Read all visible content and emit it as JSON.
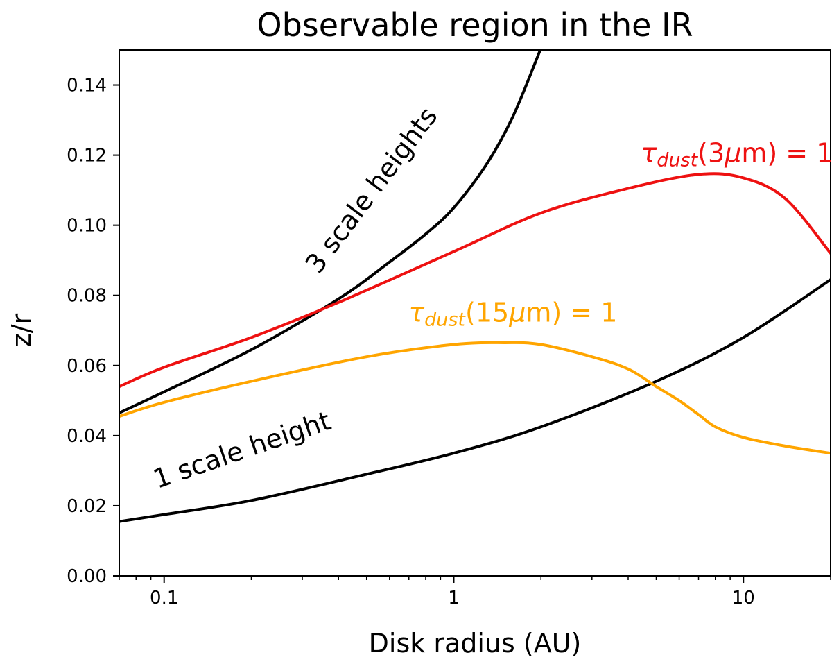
{
  "chart_data": {
    "type": "line",
    "title": "Observable region in the IR",
    "xlabel": "Disk radius (AU)",
    "ylabel": "z/r",
    "xscale": "log",
    "xlim": [
      0.07,
      20
    ],
    "ylim": [
      0,
      0.15
    ],
    "grid": false,
    "xticks": [
      {
        "value": 0.1,
        "label": "0.1"
      },
      {
        "value": 1,
        "label": "1"
      },
      {
        "value": 10,
        "label": "10"
      }
    ],
    "yticks": [
      {
        "value": 0.0,
        "label": "0.00"
      },
      {
        "value": 0.02,
        "label": "0.02"
      },
      {
        "value": 0.04,
        "label": "0.04"
      },
      {
        "value": 0.06,
        "label": "0.06"
      },
      {
        "value": 0.08,
        "label": "0.08"
      },
      {
        "value": 0.1,
        "label": "0.10"
      },
      {
        "value": 0.12,
        "label": "0.12"
      },
      {
        "value": 0.14,
        "label": "0.14"
      }
    ],
    "series": [
      {
        "name": "1 scale height",
        "color": "#000000",
        "x": [
          0.07,
          0.1,
          0.2,
          0.5,
          1,
          2,
          5,
          10,
          20
        ],
        "y": [
          0.0155,
          0.0175,
          0.0215,
          0.029,
          0.035,
          0.0425,
          0.0555,
          0.068,
          0.0845
        ]
      },
      {
        "name": "3 scale heights",
        "color": "#000000",
        "x": [
          0.07,
          0.1,
          0.2,
          0.4,
          0.6,
          0.8,
          1,
          1.3,
          1.6,
          2.0
        ],
        "y": [
          0.0465,
          0.0525,
          0.0645,
          0.079,
          0.0895,
          0.0975,
          0.105,
          0.1175,
          0.131,
          0.1505
        ]
      },
      {
        "name": "tau_dust(3um) = 1",
        "color": "#ee1111",
        "x": [
          0.07,
          0.1,
          0.2,
          0.4,
          1,
          2,
          4,
          7,
          10,
          14,
          20
        ],
        "y": [
          0.054,
          0.0595,
          0.068,
          0.078,
          0.0925,
          0.1035,
          0.1105,
          0.1145,
          0.1135,
          0.1075,
          0.092
        ]
      },
      {
        "name": "tau_dust(15um) = 1",
        "color": "#ffa500",
        "x": [
          0.07,
          0.1,
          0.2,
          0.5,
          1,
          1.5,
          2,
          3,
          4,
          5,
          6,
          7,
          8,
          10,
          14,
          20
        ],
        "y": [
          0.0455,
          0.0495,
          0.0555,
          0.0625,
          0.066,
          0.0665,
          0.066,
          0.0625,
          0.059,
          0.054,
          0.05,
          0.046,
          0.0425,
          0.0395,
          0.037,
          0.035
        ]
      }
    ],
    "annotations": [
      {
        "id": "three-scale",
        "parts": [
          {
            "text": "3 scale heights"
          }
        ],
        "color": "#000000",
        "anchor_x": 0.55,
        "anchor_y": 0.1085,
        "rotation": -53
      },
      {
        "id": "one-scale",
        "parts": [
          {
            "text": "1 scale height"
          }
        ],
        "color": "#000000",
        "anchor_x": 0.19,
        "anchor_y": 0.0335,
        "rotation": -19
      },
      {
        "id": "tau3",
        "parts": [
          {
            "text": "τ",
            "style": "italic"
          },
          {
            "text": "dust",
            "style": "italic-sub"
          },
          {
            "text": "(3"
          },
          {
            "text": "μ",
            "style": "italic"
          },
          {
            "text": "m) = 1"
          }
        ],
        "color": "#ee1111",
        "anchor_x": 9.5,
        "anchor_y": 0.118,
        "rotation": 0
      },
      {
        "id": "tau15",
        "parts": [
          {
            "text": "τ",
            "style": "italic"
          },
          {
            "text": "dust",
            "style": "italic-sub"
          },
          {
            "text": "(15"
          },
          {
            "text": "μ",
            "style": "italic"
          },
          {
            "text": "m) = 1"
          }
        ],
        "color": "#ffa500",
        "anchor_x": 1.6,
        "anchor_y": 0.0725,
        "rotation": 0
      }
    ]
  }
}
